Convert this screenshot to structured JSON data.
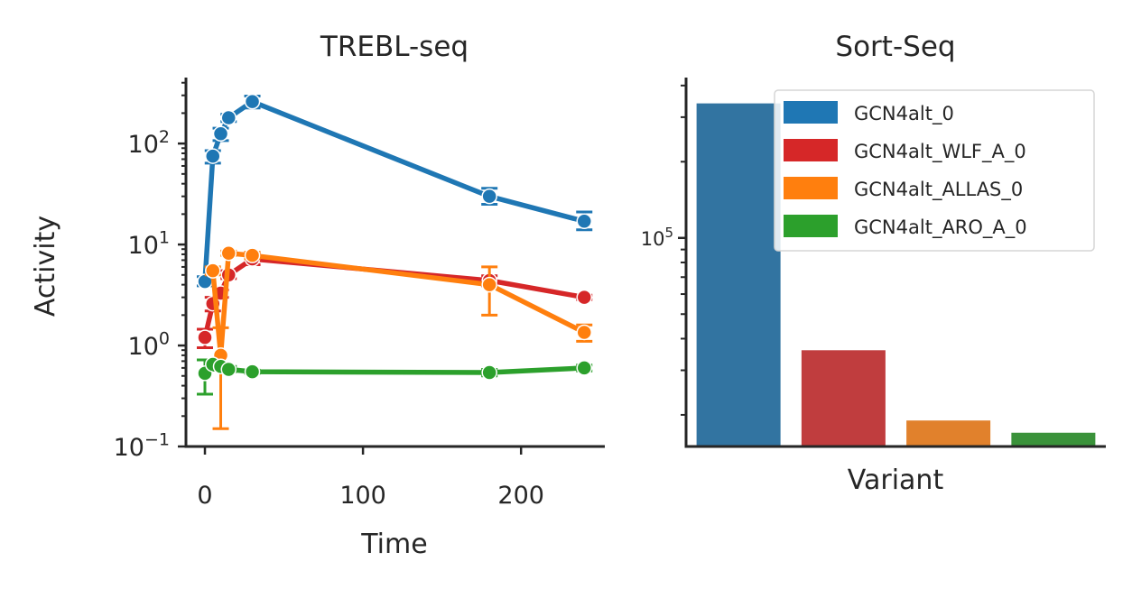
{
  "chart_data": [
    {
      "type": "line",
      "title": "TREBL-seq",
      "xlabel": "Time",
      "ylabel": "Activity",
      "yscale": "log",
      "xlim": [
        -12,
        253
      ],
      "ylim": [
        0.1,
        450
      ],
      "xticks": [
        {
          "value": 0,
          "label": "0"
        },
        {
          "value": 100,
          "label": "100"
        },
        {
          "value": 200,
          "label": "200"
        }
      ],
      "yticks": [
        {
          "value": 0.1,
          "base": "10",
          "exp": "−1"
        },
        {
          "value": 1,
          "base": "10",
          "exp": "0"
        },
        {
          "value": 10,
          "base": "10",
          "exp": "1"
        },
        {
          "value": 100,
          "base": "10",
          "exp": "2"
        }
      ],
      "grid": false,
      "series": [
        {
          "name": "GCN4alt_0",
          "color": "#1f77b4",
          "x": [
            0,
            5,
            10,
            15,
            30,
            180,
            240
          ],
          "y": [
            4.3,
            75,
            125,
            180,
            260,
            30,
            17
          ],
          "err_low": [
            3.9,
            64,
            107,
            165,
            225,
            25,
            14
          ],
          "err_high": [
            4.8,
            85,
            142,
            195,
            295,
            36,
            21
          ]
        },
        {
          "name": "GCN4alt_WLF_A_0",
          "color": "#d62728",
          "x": [
            0,
            5,
            10,
            15,
            30,
            180,
            240
          ],
          "y": [
            1.2,
            2.6,
            3.3,
            5.0,
            7.2,
            4.4,
            3.0
          ],
          "err_low": [
            0.95,
            2.2,
            3.0,
            4.6,
            6.3,
            3.9,
            2.85
          ],
          "err_high": [
            1.45,
            3.0,
            3.55,
            5.5,
            8.2,
            4.9,
            3.15
          ]
        },
        {
          "name": "GCN4alt_ALLAS_0",
          "color": "#ff7f0e",
          "x": [
            5,
            10,
            15,
            30,
            180,
            240
          ],
          "y": [
            5.5,
            0.8,
            8.2,
            7.8,
            4.0,
            1.35
          ],
          "err_low": [
            5.0,
            0.15,
            7.8,
            7.2,
            2.0,
            1.1
          ],
          "err_high": [
            6.0,
            1.5,
            8.6,
            8.4,
            6.0,
            1.6
          ]
        },
        {
          "name": "GCN4alt_ARO_A_0",
          "color": "#2ca02c",
          "x": [
            0,
            5,
            10,
            15,
            30,
            180,
            240
          ],
          "y": [
            0.53,
            0.65,
            0.62,
            0.58,
            0.55,
            0.54,
            0.6
          ],
          "err_low": [
            0.33,
            0.6,
            0.57,
            0.55,
            0.53,
            0.5,
            0.56
          ],
          "err_high": [
            0.72,
            0.7,
            0.67,
            0.62,
            0.57,
            0.58,
            0.64
          ]
        }
      ]
    },
    {
      "type": "bar",
      "title": "Sort-Seq",
      "xlabel": "Variant",
      "ylabel": "",
      "yscale": "log",
      "ylim": [
        15000,
        430000
      ],
      "yticks": [
        {
          "value": 100000,
          "base": "10",
          "exp": "5"
        }
      ],
      "categories": [
        "GCN4alt_0",
        "GCN4alt_WLF_A_0",
        "GCN4alt_ALLAS_0",
        "GCN4alt_ARO_A_0"
      ],
      "values": [
        340000,
        36000,
        19000,
        17000
      ],
      "colors": [
        "#3274a1",
        "#c03d3e",
        "#e1812c",
        "#3a923a"
      ],
      "legend": {
        "position": "upper right",
        "entries": [
          {
            "label": "GCN4alt_0",
            "color": "#1f77b4"
          },
          {
            "label": "GCN4alt_WLF_A_0",
            "color": "#d62728"
          },
          {
            "label": "GCN4alt_ALLAS_0",
            "color": "#ff7f0e"
          },
          {
            "label": "GCN4alt_ARO_A_0",
            "color": "#2ca02c"
          }
        ]
      }
    }
  ]
}
